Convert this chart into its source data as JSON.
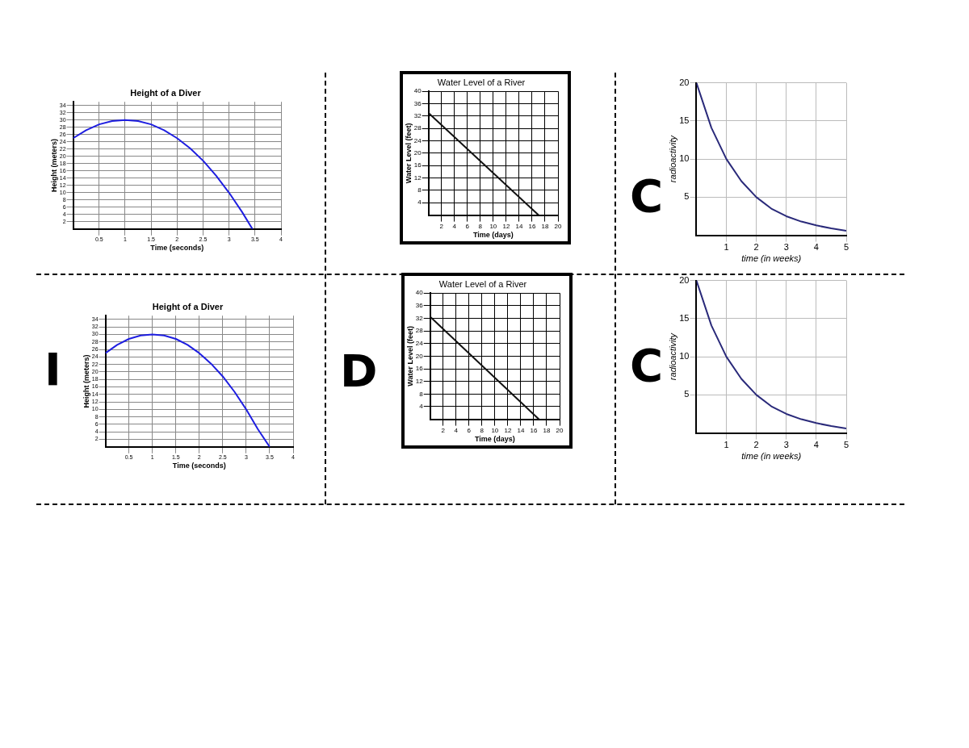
{
  "chart_data": [
    {
      "type": "line",
      "title": "Height of a Diver",
      "xlabel": "Time (seconds)",
      "ylabel": "Height (meters)",
      "color": "#1f1fe0",
      "marker": "none",
      "grid": true,
      "x": [
        0,
        0.25,
        0.5,
        0.75,
        1,
        1.25,
        1.5,
        1.75,
        2,
        2.25,
        2.5,
        2.75,
        3,
        3.25,
        3.45
      ],
      "values": [
        25,
        27.2,
        28.8,
        29.7,
        30,
        29.7,
        28.8,
        27.2,
        25,
        22.2,
        18.8,
        14.7,
        10,
        4.7,
        0
      ],
      "xlim": [
        0,
        4
      ],
      "xticks": [
        0.5,
        1,
        1.5,
        2,
        2.5,
        3,
        3.5,
        4
      ],
      "ylim": [
        0,
        35
      ],
      "yticks": [
        2,
        4,
        6,
        8,
        10,
        12,
        14,
        16,
        18,
        20,
        22,
        24,
        26,
        28,
        30,
        32,
        34
      ]
    },
    {
      "type": "line",
      "title": "Water Level of a River",
      "xlabel": "Time (days)",
      "ylabel": "Water Level (feet)",
      "color": "#111111",
      "marker": "none",
      "grid": true,
      "x": [
        0,
        17
      ],
      "values": [
        33,
        0
      ],
      "xlim": [
        0,
        20
      ],
      "xticks": [
        2,
        4,
        6,
        8,
        10,
        12,
        14,
        16,
        18,
        20
      ],
      "ylim": [
        0,
        40
      ],
      "yticks": [
        4,
        8,
        12,
        16,
        20,
        24,
        28,
        32,
        36,
        40
      ]
    },
    {
      "type": "line",
      "xlabel": "time (in weeks)",
      "ylabel": "radioactivity",
      "color": "#2a2a7a",
      "marker": "none",
      "grid": true,
      "annotations": [
        "C"
      ],
      "x": [
        0,
        0.5,
        1,
        1.5,
        2,
        2.5,
        3,
        3.5,
        4,
        4.5,
        5
      ],
      "values": [
        20,
        14.1,
        10,
        7.1,
        5,
        3.5,
        2.5,
        1.8,
        1.3,
        0.9,
        0.6
      ],
      "xlim": [
        0,
        5
      ],
      "xticks": [
        1,
        2,
        3,
        4,
        5
      ],
      "ylim": [
        0,
        20
      ],
      "yticks": [
        5,
        10,
        15,
        20
      ]
    },
    {
      "type": "line",
      "title": "Height of a Diver",
      "xlabel": "Time (seconds)",
      "ylabel": "Height (meters)",
      "color": "#1f1fe0",
      "marker": "none",
      "grid": true,
      "annotations": [
        "I"
      ],
      "x": [
        0,
        0.25,
        0.5,
        0.75,
        1,
        1.25,
        1.5,
        1.75,
        2,
        2.25,
        2.5,
        2.75,
        3,
        3.25,
        3.5
      ],
      "values": [
        25,
        27.2,
        28.8,
        29.7,
        30,
        29.7,
        28.8,
        27.2,
        25,
        22.2,
        18.8,
        14.7,
        10,
        4.7,
        0
      ],
      "xlim": [
        0,
        4
      ],
      "xticks": [
        0.5,
        1,
        1.5,
        2,
        2.5,
        3,
        3.5,
        4
      ],
      "ylim": [
        0,
        35
      ],
      "yticks": [
        2,
        4,
        6,
        8,
        10,
        12,
        14,
        16,
        18,
        20,
        22,
        24,
        26,
        28,
        30,
        32,
        34
      ]
    },
    {
      "type": "line",
      "title": "Water Level of a River",
      "xlabel": "Time (days)",
      "ylabel": "Water Level (feet)",
      "color": "#111111",
      "marker": "none",
      "grid": true,
      "annotations": [
        "D"
      ],
      "x": [
        0,
        16.8
      ],
      "values": [
        32.5,
        0
      ],
      "xlim": [
        0,
        20
      ],
      "xticks": [
        2,
        4,
        6,
        8,
        10,
        12,
        14,
        16,
        18,
        20
      ],
      "ylim": [
        0,
        40
      ],
      "yticks": [
        4,
        8,
        12,
        16,
        20,
        24,
        28,
        32,
        36,
        40
      ]
    },
    {
      "type": "line",
      "xlabel": "time (in weeks)",
      "ylabel": "radioactivity",
      "color": "#2a2a7a",
      "marker": "none",
      "grid": true,
      "annotations": [
        "C"
      ],
      "x": [
        0,
        0.5,
        1,
        1.5,
        2,
        2.5,
        3,
        3.5,
        4,
        4.5,
        5
      ],
      "values": [
        20,
        14.1,
        10,
        7.1,
        5,
        3.5,
        2.5,
        1.8,
        1.3,
        0.9,
        0.6
      ],
      "xlim": [
        0,
        5
      ],
      "xticks": [
        1,
        2,
        3,
        4,
        5
      ],
      "ylim": [
        0,
        20
      ],
      "yticks": [
        5,
        10,
        15,
        20
      ]
    }
  ]
}
